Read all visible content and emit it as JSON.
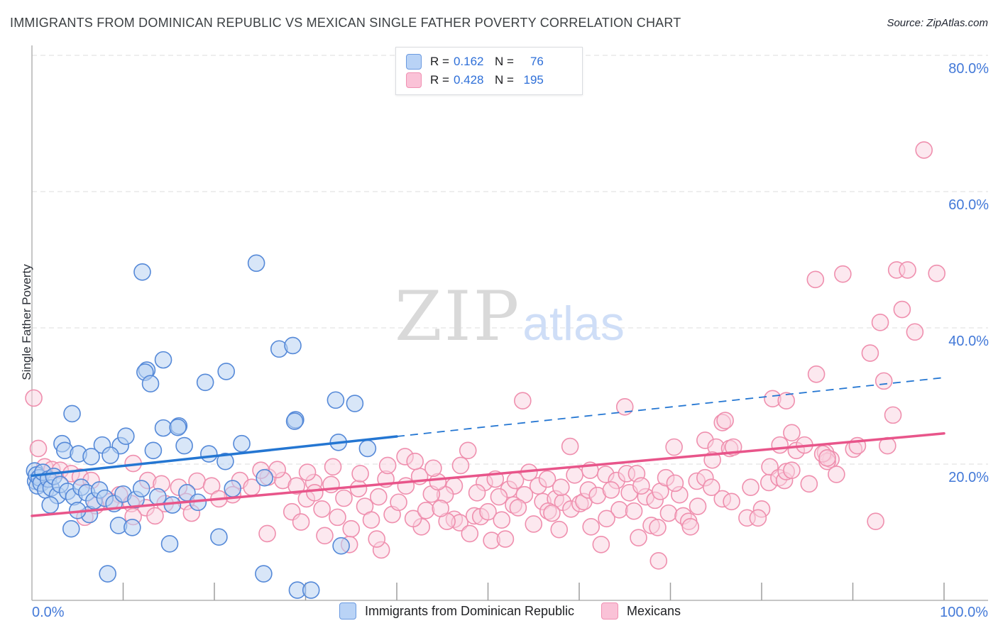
{
  "title": "IMMIGRANTS FROM DOMINICAN REPUBLIC VS MEXICAN SINGLE FATHER POVERTY CORRELATION CHART",
  "source": "Source: ZipAtlas.com",
  "watermark": {
    "zip": "ZIP",
    "atlas": "atlas"
  },
  "legend_box": {
    "rows": [
      {
        "r_label": "R =",
        "r_value": "0.162",
        "n_label": "N =",
        "n_value": "76"
      },
      {
        "r_label": "R =",
        "r_value": "0.428",
        "n_label": "N =",
        "n_value": "195"
      }
    ]
  },
  "axes": {
    "y_label": "Single Father Poverty",
    "x_min_label": "0.0%",
    "x_max_label": "100.0%"
  },
  "bottom_legend": [
    {
      "label": "Immigrants from Dominican Republic",
      "color": "#b9d3f6"
    },
    {
      "label": "Mexicans",
      "color": "#fac2d7"
    }
  ],
  "chart_data": {
    "type": "scatter",
    "xlabel": "",
    "ylabel": "Single Father Poverty",
    "xlim": [
      0,
      105
    ],
    "ylim": [
      0,
      84
    ],
    "x_tick_percents": [
      10,
      20,
      30,
      40,
      50,
      60,
      70,
      80,
      90,
      100
    ],
    "y_gridlines": [
      {
        "value": 80,
        "label": "80.0%"
      },
      {
        "value": 60,
        "label": "60.0%"
      },
      {
        "value": 40,
        "label": "40.0%"
      },
      {
        "value": 20,
        "label": "20.0%"
      }
    ],
    "series": [
      {
        "name": "Immigrants from Dominican Republic",
        "R": 0.162,
        "N": 76,
        "stroke": "#5589d8",
        "fill": "rgba(184,210,243,0.55)",
        "points": [
          [
            12.1,
            48.2
          ],
          [
            24.6,
            49.5
          ],
          [
            27.1,
            36.9
          ],
          [
            28.6,
            37.4
          ],
          [
            14.4,
            35.3
          ],
          [
            12.6,
            33.8
          ],
          [
            12.4,
            33.5
          ],
          [
            13.0,
            31.8
          ],
          [
            19.0,
            32.0
          ],
          [
            21.3,
            33.6
          ],
          [
            33.3,
            29.4
          ],
          [
            35.4,
            28.9
          ],
          [
            4.4,
            27.4
          ],
          [
            28.9,
            26.5
          ],
          [
            16.1,
            25.6
          ],
          [
            28.8,
            26.3
          ],
          [
            33.6,
            23.2
          ],
          [
            36.8,
            22.3
          ],
          [
            8.3,
            3.9
          ],
          [
            25.4,
            3.9
          ],
          [
            29.1,
            1.5
          ],
          [
            30.6,
            1.5
          ],
          [
            15.1,
            8.3
          ],
          [
            20.5,
            9.3
          ],
          [
            33.9,
            8.0
          ],
          [
            4.3,
            10.5
          ],
          [
            9.5,
            11.0
          ],
          [
            11.0,
            10.7
          ],
          [
            6.3,
            12.6
          ],
          [
            3.3,
            23.0
          ],
          [
            3.6,
            22.0
          ],
          [
            5.1,
            21.5
          ],
          [
            7.7,
            22.8
          ],
          [
            6.5,
            21.1
          ],
          [
            9.7,
            22.7
          ],
          [
            10.3,
            24.1
          ],
          [
            8.6,
            21.3
          ],
          [
            14.4,
            25.3
          ],
          [
            16.0,
            25.4
          ],
          [
            16.7,
            22.7
          ],
          [
            13.3,
            22.0
          ],
          [
            19.4,
            21.5
          ],
          [
            23.0,
            23.0
          ],
          [
            21.2,
            20.4
          ],
          [
            0.3,
            19.0
          ],
          [
            0.4,
            17.5
          ],
          [
            0.5,
            18.4
          ],
          [
            0.6,
            16.8
          ],
          [
            0.8,
            18.0
          ],
          [
            1.0,
            17.2
          ],
          [
            1.2,
            18.8
          ],
          [
            1.5,
            16.2
          ],
          [
            1.8,
            17.8
          ],
          [
            2.1,
            16.5
          ],
          [
            2.4,
            18.2
          ],
          [
            2.8,
            15.4
          ],
          [
            3.1,
            17.0
          ],
          [
            3.9,
            16.0
          ],
          [
            4.6,
            15.2
          ],
          [
            5.4,
            16.6
          ],
          [
            6.0,
            15.8
          ],
          [
            6.8,
            14.6
          ],
          [
            7.4,
            16.2
          ],
          [
            8.0,
            15.0
          ],
          [
            9.0,
            14.2
          ],
          [
            10.0,
            15.6
          ],
          [
            11.4,
            14.8
          ],
          [
            12.0,
            16.4
          ],
          [
            13.8,
            15.2
          ],
          [
            15.4,
            14.0
          ],
          [
            17.0,
            15.8
          ],
          [
            18.2,
            14.4
          ],
          [
            5.0,
            13.2
          ],
          [
            2.0,
            14.0
          ],
          [
            22.0,
            16.4
          ],
          [
            25.5,
            18.0
          ]
        ]
      },
      {
        "name": "Mexicans",
        "R": 0.428,
        "N": 195,
        "stroke": "#ef8fae",
        "fill": "rgba(249,209,223,0.5)",
        "points": [
          [
            97.8,
            66.1
          ],
          [
            85.9,
            47.1
          ],
          [
            88.9,
            47.9
          ],
          [
            94.8,
            48.5
          ],
          [
            96.0,
            48.5
          ],
          [
            99.2,
            48.0
          ],
          [
            95.4,
            42.7
          ],
          [
            93.0,
            40.8
          ],
          [
            96.8,
            39.4
          ],
          [
            91.9,
            36.3
          ],
          [
            86.0,
            33.2
          ],
          [
            93.4,
            32.2
          ],
          [
            81.2,
            29.6
          ],
          [
            82.7,
            29.3
          ],
          [
            94.4,
            27.2
          ],
          [
            83.3,
            24.6
          ],
          [
            82.0,
            22.8
          ],
          [
            93.8,
            22.7
          ],
          [
            87.0,
            21.7
          ],
          [
            87.6,
            20.7
          ],
          [
            87.2,
            20.4
          ],
          [
            88.2,
            18.5
          ],
          [
            78.8,
            16.6
          ],
          [
            80.8,
            17.3
          ],
          [
            80.9,
            19.6
          ],
          [
            81.9,
            18.0
          ],
          [
            82.5,
            17.6
          ],
          [
            82.7,
            18.9
          ],
          [
            83.3,
            19.1
          ],
          [
            83.8,
            22.0
          ],
          [
            84.7,
            22.8
          ],
          [
            85.2,
            17.1
          ],
          [
            86.7,
            21.5
          ],
          [
            87.2,
            20.9
          ],
          [
            90.1,
            22.2
          ],
          [
            90.5,
            22.7
          ],
          [
            80.0,
            13.4
          ],
          [
            78.4,
            12.1
          ],
          [
            79.6,
            12.1
          ],
          [
            92.5,
            11.6
          ],
          [
            53.8,
            29.3
          ],
          [
            65.0,
            28.4
          ],
          [
            47.8,
            22.0
          ],
          [
            59.0,
            22.6
          ],
          [
            70.4,
            22.5
          ],
          [
            73.8,
            23.5
          ],
          [
            75.7,
            26.1
          ],
          [
            75.0,
            22.5
          ],
          [
            76.5,
            22.3
          ],
          [
            74.6,
            20.6
          ],
          [
            61.2,
            19.1
          ],
          [
            62.9,
            18.5
          ],
          [
            64.1,
            17.6
          ],
          [
            65.2,
            18.6
          ],
          [
            66.3,
            18.6
          ],
          [
            46.3,
            16.8
          ],
          [
            45.3,
            15.5
          ],
          [
            49.6,
            17.3
          ],
          [
            50.8,
            17.8
          ],
          [
            52.3,
            16.3
          ],
          [
            54.0,
            15.5
          ],
          [
            52.8,
            14.0
          ],
          [
            53.3,
            13.6
          ],
          [
            51.2,
            15.2
          ],
          [
            56.0,
            14.5
          ],
          [
            57.4,
            14.9
          ],
          [
            58.2,
            14.4
          ],
          [
            59.1,
            13.4
          ],
          [
            60.1,
            14.2
          ],
          [
            60.5,
            14.5
          ],
          [
            56.6,
            13.1
          ],
          [
            57.0,
            12.8
          ],
          [
            61.3,
            10.8
          ],
          [
            62.4,
            8.2
          ],
          [
            64.4,
            13.3
          ],
          [
            66.0,
            13.1
          ],
          [
            67.3,
            15.2
          ],
          [
            68.3,
            14.7
          ],
          [
            68.9,
            16.0
          ],
          [
            71.0,
            15.5
          ],
          [
            67.9,
            11.0
          ],
          [
            68.6,
            10.7
          ],
          [
            69.8,
            12.8
          ],
          [
            71.4,
            12.4
          ],
          [
            72.0,
            11.6
          ],
          [
            72.2,
            10.8
          ],
          [
            68.7,
            5.8
          ],
          [
            46.3,
            11.9
          ],
          [
            46.9,
            11.4
          ],
          [
            45.5,
            11.6
          ],
          [
            48.5,
            12.4
          ],
          [
            49.2,
            12.3
          ],
          [
            50.4,
            8.8
          ],
          [
            51.9,
            9.0
          ],
          [
            72.9,
            17.5
          ],
          [
            73.8,
            18.0
          ],
          [
            76.0,
            26.4
          ],
          [
            76.9,
            22.5
          ],
          [
            75.7,
            14.9
          ],
          [
            76.7,
            14.5
          ],
          [
            25.8,
            9.8
          ],
          [
            38.3,
            7.4
          ],
          [
            0.2,
            29.7
          ],
          [
            40.9,
            21.1
          ],
          [
            32.1,
            9.5
          ],
          [
            42.7,
            10.8
          ],
          [
            0.7,
            22.3
          ],
          [
            11.1,
            20.1
          ],
          [
            1.4,
            19.6
          ],
          [
            2.2,
            19.2
          ],
          [
            3.1,
            19.1
          ],
          [
            4.3,
            18.6
          ],
          [
            5.3,
            18.1
          ],
          [
            6.5,
            17.6
          ],
          [
            12.7,
            17.6
          ],
          [
            14.2,
            17.1
          ],
          [
            9.6,
            15.5
          ],
          [
            16.1,
            16.6
          ],
          [
            18.1,
            17.5
          ],
          [
            19.7,
            16.8
          ],
          [
            22.8,
            17.6
          ],
          [
            24.1,
            16.6
          ],
          [
            25.9,
            18.1
          ],
          [
            27.5,
            17.6
          ],
          [
            29.0,
            16.8
          ],
          [
            26.9,
            19.2
          ],
          [
            25.1,
            19.1
          ],
          [
            22.0,
            15.5
          ],
          [
            20.5,
            14.9
          ],
          [
            16.9,
            14.5
          ],
          [
            14.6,
            14.2
          ],
          [
            12.5,
            13.6
          ],
          [
            10.9,
            14.2
          ],
          [
            8.6,
            14.5
          ],
          [
            7.0,
            13.9
          ],
          [
            30.1,
            14.9
          ],
          [
            30.9,
            17.3
          ],
          [
            11.1,
            12.3
          ],
          [
            13.5,
            12.4
          ],
          [
            28.5,
            13.0
          ],
          [
            29.5,
            11.5
          ],
          [
            31.0,
            15.8
          ],
          [
            31.8,
            13.4
          ],
          [
            32.8,
            17.0
          ],
          [
            33.5,
            12.2
          ],
          [
            34.2,
            15.0
          ],
          [
            35.0,
            10.5
          ],
          [
            35.8,
            16.4
          ],
          [
            36.5,
            13.8
          ],
          [
            37.2,
            11.8
          ],
          [
            38.0,
            15.2
          ],
          [
            38.8,
            17.8
          ],
          [
            39.5,
            12.6
          ],
          [
            40.2,
            14.4
          ],
          [
            41.0,
            16.8
          ],
          [
            41.8,
            12.0
          ],
          [
            42.5,
            18.2
          ],
          [
            43.2,
            13.2
          ],
          [
            43.8,
            15.6
          ],
          [
            44.5,
            17.4
          ],
          [
            30.2,
            18.8
          ],
          [
            33.0,
            19.6
          ],
          [
            36.0,
            18.6
          ],
          [
            39.0,
            19.8
          ],
          [
            42.0,
            20.4
          ],
          [
            44.0,
            19.4
          ],
          [
            47.0,
            19.8
          ],
          [
            48.8,
            15.8
          ],
          [
            50.0,
            13.0
          ],
          [
            51.5,
            11.8
          ],
          [
            53.0,
            17.6
          ],
          [
            54.5,
            18.8
          ],
          [
            55.5,
            16.8
          ],
          [
            56.5,
            17.8
          ],
          [
            58.0,
            16.6
          ],
          [
            59.5,
            18.4
          ],
          [
            61.0,
            16.2
          ],
          [
            62.0,
            15.4
          ],
          [
            63.5,
            16.2
          ],
          [
            65.5,
            15.8
          ],
          [
            66.8,
            16.8
          ],
          [
            69.5,
            18.0
          ],
          [
            70.5,
            17.2
          ],
          [
            73.0,
            13.8
          ],
          [
            74.5,
            16.6
          ],
          [
            63.0,
            12.0
          ],
          [
            55.0,
            11.2
          ],
          [
            48.0,
            9.8
          ],
          [
            57.8,
            10.4
          ],
          [
            66.5,
            9.2
          ],
          [
            44.8,
            13.5
          ],
          [
            37.8,
            9.0
          ],
          [
            34.8,
            8.2
          ],
          [
            5.8,
            12.2
          ],
          [
            17.5,
            12.8
          ]
        ]
      }
    ],
    "trend_lines": [
      {
        "series": "Immigrants from Dominican Republic",
        "color": "#2476d2",
        "x_start": 0,
        "y_start": 18.3,
        "x_end": 100,
        "y_end": 32.7,
        "solid_until_x": 40
      },
      {
        "series": "Mexicans",
        "color": "#e8558a",
        "x_start": 0,
        "y_start": 12.4,
        "x_end": 100,
        "y_end": 24.5,
        "solid_until_x": 100
      }
    ]
  }
}
